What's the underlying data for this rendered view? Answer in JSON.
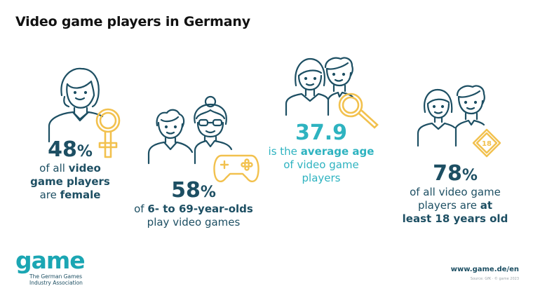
{
  "title": "Video game players in Germany",
  "stats": {
    "female": {
      "value": "48",
      "unit": "%",
      "line1": "of all ",
      "line1_bold": "video",
      "line2_bold": "game players",
      "line3": "are ",
      "line3_bold": "female"
    },
    "age_range": {
      "value": "58",
      "unit": "%",
      "line1": "of ",
      "line1_bold": "6- to 69-year-olds",
      "line2": "play video games"
    },
    "average_age": {
      "value": "37.9",
      "line1": "is the ",
      "line1_bold": "average age",
      "line2": "of video game",
      "line3": "players"
    },
    "adults": {
      "value": "78",
      "unit": "%",
      "line1": "of all video game",
      "line2": "players are ",
      "line2_bold": "at",
      "line3_bold": "least 18 years old"
    }
  },
  "badge_18": "18",
  "logo": {
    "word": "game",
    "sub1": "The German Games",
    "sub2": "Industry Association"
  },
  "url": "www.game.de/en",
  "source": "Source: GfK · © game 2023",
  "colors": {
    "dark_teal": "#1d4f63",
    "teal": "#2eb3c0",
    "yellow": "#f2c14e"
  },
  "icons": [
    "woman-icon",
    "female-symbol-icon",
    "boy-and-grandmother-icon",
    "gamepad-icon",
    "couple-icon",
    "magnifier-icon",
    "adult-couple-icon",
    "age-18-badge-icon"
  ]
}
